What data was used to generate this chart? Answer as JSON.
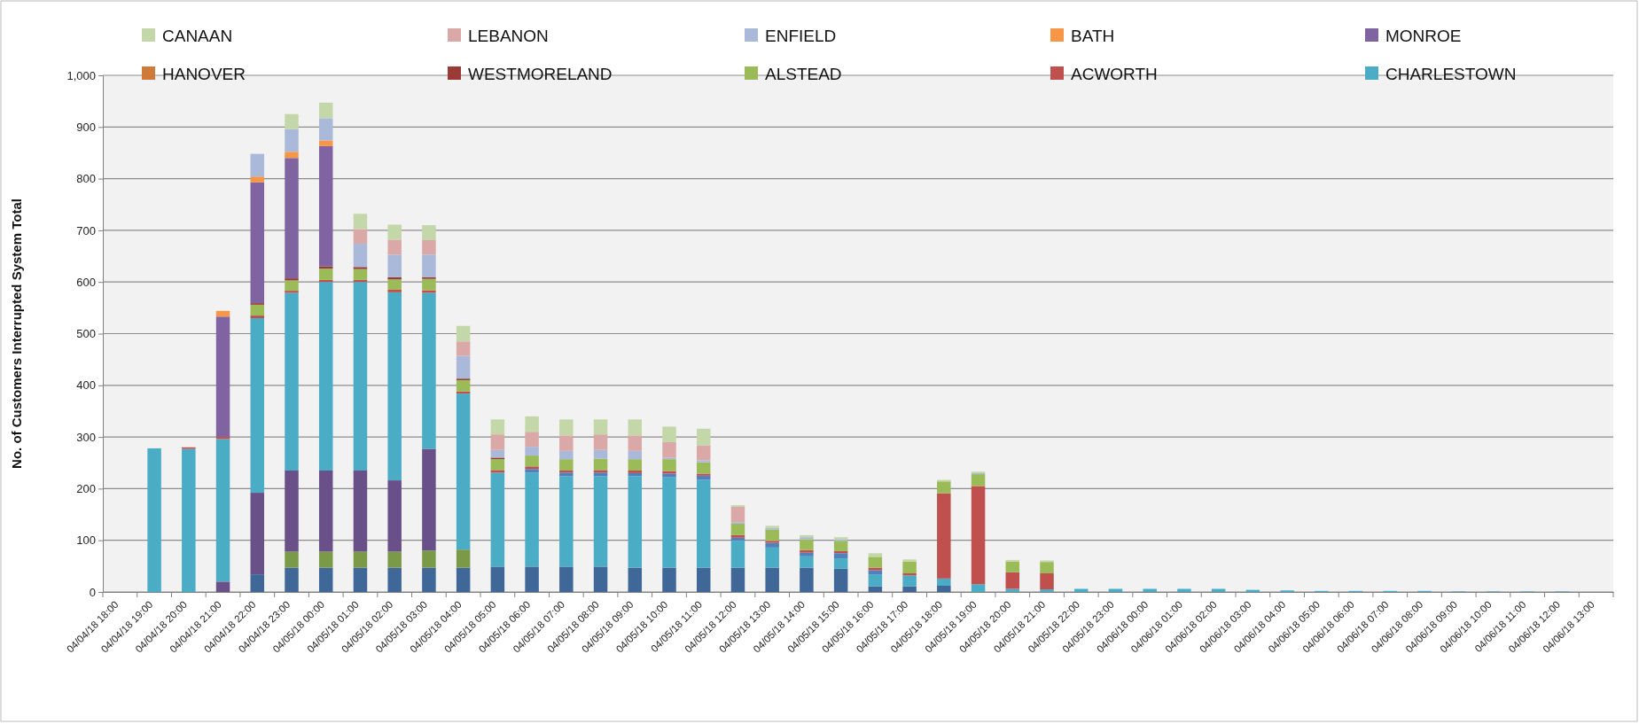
{
  "chart_data": {
    "type": "bar",
    "stacked": true,
    "ylabel": "No. of Customers Interrupted System Total",
    "ylim": [
      0,
      1000
    ],
    "yticks": [
      0,
      100,
      200,
      300,
      400,
      500,
      600,
      700,
      800,
      900,
      {
        "value": 1000,
        "label": "1,000"
      }
    ],
    "grid": "y",
    "legend": "top",
    "categories": [
      "04/04/18 18:00",
      "04/04/18 19:00",
      "04/04/18 20:00",
      "04/04/18 21:00",
      "04/04/18 22:00",
      "04/04/18 23:00",
      "04/05/18 00:00",
      "04/05/18 01:00",
      "04/05/18 02:00",
      "04/05/18 03:00",
      "04/05/18 04:00",
      "04/05/18 05:00",
      "04/05/18 06:00",
      "04/05/18 07:00",
      "04/05/18 08:00",
      "04/05/18 09:00",
      "04/05/18 10:00",
      "04/05/18 11:00",
      "04/05/18 12:00",
      "04/05/18 13:00",
      "04/05/18 14:00",
      "04/05/18 15:00",
      "04/05/18 16:00",
      "04/05/18 17:00",
      "04/05/18 18:00",
      "04/05/18 19:00",
      "04/05/18 20:00",
      "04/05/18 21:00",
      "04/05/18 22:00",
      "04/05/18 23:00",
      "04/06/18 00:00",
      "04/06/18 01:00",
      "04/06/18 02:00",
      "04/06/18 03:00",
      "04/06/18 04:00",
      "04/06/18 05:00",
      "04/06/18 06:00",
      "04/06/18 07:00",
      "04/06/18 08:00",
      "04/06/18 09:00",
      "04/06/18 10:00",
      "04/06/18 11:00",
      "04/06/18 12:00",
      "04/06/18 13:00"
    ],
    "series": [
      {
        "color": "#3f6797",
        "values": [
          0,
          0,
          0,
          0,
          34,
          47,
          47,
          47,
          47,
          47,
          47,
          49,
          49,
          49,
          49,
          47,
          47,
          47,
          47,
          47,
          47,
          45,
          11,
          11,
          12,
          0,
          0,
          0,
          0,
          0,
          0,
          0,
          0,
          0,
          0,
          0,
          0,
          0,
          0,
          0,
          0,
          0,
          0,
          0
        ]
      },
      {
        "color": "#7a9a48",
        "values": [
          0,
          0,
          0,
          0,
          0,
          31,
          31,
          31,
          31,
          33,
          35,
          0,
          0,
          0,
          0,
          0,
          0,
          0,
          0,
          0,
          0,
          0,
          0,
          0,
          0,
          0,
          0,
          0,
          0,
          0,
          0,
          0,
          0,
          0,
          0,
          0,
          0,
          0,
          0,
          0,
          0,
          0,
          0,
          0
        ]
      },
      {
        "color": "#6a5088",
        "values": [
          0,
          0,
          0,
          20,
          158,
          157,
          157,
          157,
          138,
          197,
          0,
          0,
          0,
          0,
          0,
          0,
          0,
          0,
          0,
          0,
          0,
          0,
          0,
          0,
          0,
          0,
          0,
          0,
          0,
          0,
          0,
          0,
          0,
          0,
          0,
          0,
          0,
          0,
          0,
          0,
          0,
          0,
          0,
          0
        ]
      },
      {
        "name": "CHARLESTOWN",
        "color": "#4bacc6",
        "values": [
          0,
          278,
          277,
          276,
          338,
          344,
          365,
          365,
          364,
          302,
          302,
          182,
          182,
          175,
          175,
          177,
          175,
          170,
          52,
          39,
          22,
          20,
          23,
          21,
          14,
          15,
          6,
          5,
          6,
          6,
          6,
          6,
          6,
          4,
          3,
          2,
          2,
          2,
          2,
          1,
          1,
          1,
          1,
          0
        ]
      },
      {
        "color": "#4f81bd",
        "values": [
          0,
          0,
          0,
          0,
          0,
          0,
          0,
          0,
          0,
          0,
          0,
          0,
          7,
          7,
          7,
          6,
          7,
          8,
          6,
          9,
          7,
          10,
          8,
          0,
          0,
          0,
          0,
          0,
          0,
          0,
          0,
          0,
          0,
          0,
          0,
          0,
          0,
          0,
          0,
          0,
          0,
          0,
          0,
          0
        ]
      },
      {
        "name": "ACWORTH",
        "color": "#c0504d",
        "values": [
          0,
          0,
          3,
          4,
          5,
          4,
          4,
          4,
          5,
          5,
          4,
          5,
          5,
          4,
          5,
          5,
          5,
          4,
          5,
          4,
          5,
          4,
          5,
          4,
          165,
          190,
          32,
          31,
          0,
          0,
          0,
          0,
          0,
          0,
          0,
          0,
          0,
          0,
          0,
          0,
          0,
          0,
          0,
          0
        ]
      },
      {
        "name": "ALSTEAD",
        "color": "#9bbb59",
        "values": [
          0,
          0,
          0,
          0,
          21,
          20,
          22,
          21,
          20,
          22,
          22,
          21,
          21,
          22,
          22,
          22,
          23,
          22,
          22,
          22,
          21,
          20,
          21,
          23,
          23,
          23,
          21,
          22,
          0,
          0,
          0,
          0,
          0,
          0,
          0,
          0,
          0,
          0,
          0,
          0,
          0,
          0,
          0,
          0
        ]
      },
      {
        "name": "WESTMORELAND",
        "color": "#9b3b37",
        "values": [
          0,
          0,
          0,
          0,
          3,
          4,
          4,
          4,
          4,
          3,
          3,
          3,
          0,
          0,
          0,
          0,
          0,
          0,
          0,
          0,
          0,
          0,
          0,
          0,
          0,
          0,
          0,
          0,
          0,
          0,
          0,
          0,
          0,
          0,
          0,
          0,
          0,
          0,
          0,
          0,
          0,
          0,
          0,
          0
        ]
      },
      {
        "name": "HANOVER",
        "color": "#d07a3a",
        "values": [
          0,
          0,
          0,
          0,
          0,
          0,
          0,
          0,
          0,
          0,
          0,
          0,
          0,
          0,
          0,
          0,
          0,
          0,
          0,
          0,
          0,
          0,
          0,
          0,
          0,
          0,
          0,
          0,
          0,
          0,
          0,
          0,
          0,
          0,
          0,
          0,
          0,
          0,
          0,
          0,
          0,
          0,
          0,
          0
        ]
      },
      {
        "name": "MONROE",
        "color": "#8064a2",
        "values": [
          0,
          0,
          0,
          233,
          234,
          233,
          233,
          0,
          0,
          0,
          0,
          0,
          0,
          0,
          0,
          0,
          0,
          0,
          0,
          0,
          0,
          0,
          0,
          0,
          0,
          0,
          0,
          0,
          0,
          0,
          0,
          0,
          0,
          0,
          0,
          0,
          0,
          0,
          0,
          0,
          0,
          0,
          0,
          0
        ]
      },
      {
        "name": "BATH",
        "color": "#f79646",
        "values": [
          0,
          0,
          0,
          11,
          11,
          12,
          11,
          0,
          0,
          0,
          0,
          0,
          0,
          0,
          0,
          0,
          0,
          0,
          0,
          0,
          0,
          0,
          0,
          0,
          0,
          0,
          0,
          0,
          0,
          0,
          0,
          0,
          0,
          0,
          0,
          0,
          0,
          0,
          0,
          0,
          0,
          0,
          0,
          0
        ]
      },
      {
        "name": "ENFIELD",
        "color": "#aab9d9",
        "values": [
          0,
          0,
          0,
          0,
          44,
          44,
          43,
          45,
          44,
          44,
          44,
          15,
          17,
          16,
          17,
          16,
          3,
          4,
          3,
          3,
          4,
          3,
          0,
          null,
          null,
          2,
          0,
          0,
          0,
          0,
          0,
          0,
          0,
          0,
          0,
          0,
          0,
          0,
          0,
          0,
          0,
          0,
          0,
          0
        ]
      },
      {
        "name": "LEBANON",
        "color": "#dba8a8",
        "values": [
          0,
          0,
          0,
          0,
          0,
          0,
          0,
          28,
          29,
          28,
          28,
          30,
          29,
          30,
          30,
          30,
          30,
          29,
          30,
          0,
          0,
          0,
          0,
          0,
          0,
          0,
          0,
          0,
          0,
          0,
          0,
          0,
          0,
          0,
          0,
          0,
          0,
          0,
          0,
          0,
          0,
          0,
          0,
          0
        ]
      },
      {
        "name": "CANAAN",
        "color": "#c4d7a9",
        "values": [
          0,
          0,
          0,
          0,
          0,
          29,
          30,
          30,
          29,
          29,
          30,
          29,
          30,
          31,
          29,
          31,
          30,
          32,
          3,
          4,
          4,
          4,
          7,
          4,
          3,
          3,
          3,
          3,
          0,
          0,
          0,
          0,
          0,
          0,
          0,
          0,
          0,
          0,
          0,
          0,
          0,
          0,
          0,
          0
        ]
      }
    ]
  }
}
